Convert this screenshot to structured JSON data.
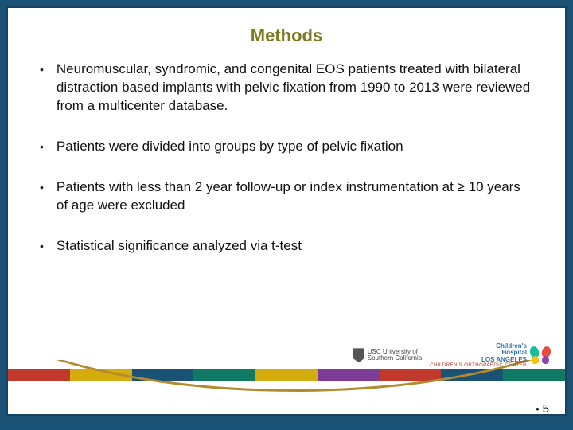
{
  "title": "Methods",
  "title_color": "#7a7a1e",
  "background_color": "#1a5276",
  "panel_background": "#ffffff",
  "bullet_color": "#222222",
  "bullets": [
    "Neuromuscular, syndromic, and congenital EOS patients treated with bilateral distraction based implants with pelvic fixation from 1990 to 2013 were reviewed from a multicenter database.",
    "Patients were divided into groups by type of pelvic fixation",
    "Patients with less than 2 year follow-up or index instrumentation at ≥ 10 years of age were excluded",
    "Statistical significance analyzed via t-test"
  ],
  "footer_band_colors": [
    "#c0392b",
    "#d4ac0d",
    "#1a5276",
    "#117a65",
    "#d4ac0d",
    "#7d3c98",
    "#c0392b",
    "#1a5276",
    "#117a65"
  ],
  "arc_color": "#b38b2e",
  "logos": {
    "usc_line1": "USC University of",
    "usc_line2": "Southern California",
    "chla_line1": "Children's",
    "chla_line2": "Hospital",
    "chla_line3": "LOS ANGELES",
    "chla_sub": "CHILDREN'S ORTHOPAEDIC CENTER"
  },
  "page_number": "5"
}
